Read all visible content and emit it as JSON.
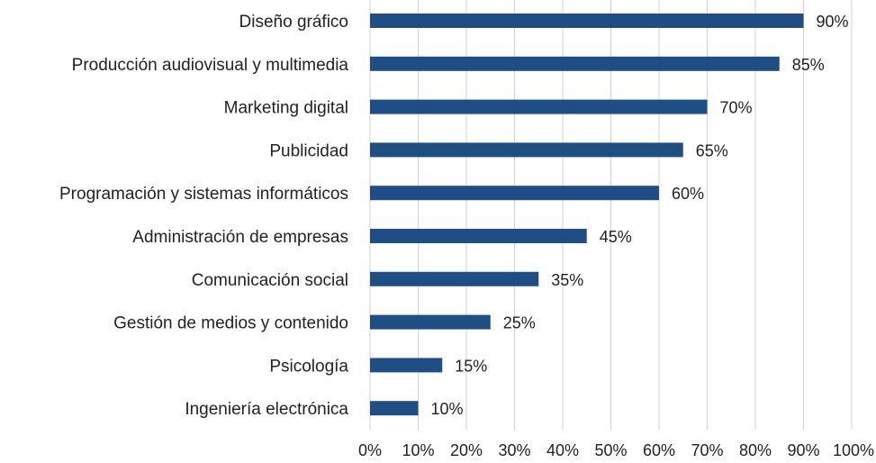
{
  "chart_data": {
    "type": "bar",
    "orientation": "horizontal",
    "categories": [
      "Diseño gráfico",
      "Producción audiovisual y multimedia",
      "Marketing digital",
      "Publicidad",
      "Programación y sistemas informáticos",
      "Administración de empresas",
      "Comunicación social",
      "Gestión de medios y contenido",
      "Psicología",
      "Ingeniería electrónica"
    ],
    "values": [
      90,
      85,
      70,
      65,
      60,
      45,
      35,
      25,
      15,
      10
    ],
    "value_labels": [
      "90%",
      "85%",
      "70%",
      "65%",
      "60%",
      "45%",
      "35%",
      "25%",
      "15%",
      "10%"
    ],
    "x_ticks": [
      "0%",
      "10%",
      "20%",
      "30%",
      "40%",
      "50%",
      "60%",
      "70%",
      "80%",
      "90%",
      "100%"
    ],
    "xlim": [
      0,
      100
    ],
    "grid": true,
    "title": "",
    "xlabel": "",
    "ylabel": "",
    "bar_color": "#1f4e85"
  }
}
